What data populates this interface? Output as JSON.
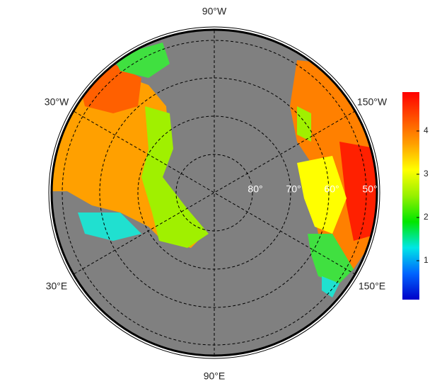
{
  "map": {
    "longitude_labels": {
      "top": "90°W",
      "upper_left": "30°W",
      "upper_right": "150°W",
      "lower_left": "30°E",
      "lower_right": "150°E",
      "bottom": "90°E"
    },
    "latitude_labels": [
      "80°",
      "70°",
      "60°",
      "50°"
    ],
    "colorbar": {
      "lim": [
        0.1,
        4.9
      ],
      "ticks": [
        1,
        2,
        3,
        4
      ],
      "colors": [
        "#0000c8",
        "#0064ff",
        "#00e6e6",
        "#00e600",
        "#96f000",
        "#ffff00",
        "#ffa000",
        "#ff5000",
        "#ff0000"
      ]
    }
  }
}
